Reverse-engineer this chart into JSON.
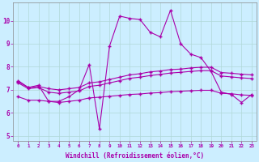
{
  "xlabel": "Windchill (Refroidissement éolien,°C)",
  "background_color": "#cceeff",
  "line_color": "#aa00aa",
  "x_values": [
    0,
    1,
    2,
    3,
    4,
    5,
    6,
    7,
    8,
    9,
    10,
    11,
    12,
    13,
    14,
    15,
    16,
    17,
    18,
    19,
    20,
    21,
    22,
    23
  ],
  "line1_y": [
    7.4,
    7.1,
    7.2,
    6.5,
    6.5,
    6.7,
    7.0,
    8.1,
    5.3,
    8.9,
    10.2,
    10.1,
    10.05,
    9.5,
    9.3,
    10.45,
    9.0,
    8.55,
    8.4,
    7.8,
    6.9,
    6.8,
    6.45,
    6.8
  ],
  "line2_y": [
    7.35,
    7.1,
    7.15,
    7.05,
    7.0,
    7.05,
    7.1,
    7.3,
    7.35,
    7.45,
    7.55,
    7.65,
    7.7,
    7.78,
    7.82,
    7.88,
    7.9,
    7.95,
    7.98,
    7.98,
    7.75,
    7.72,
    7.68,
    7.65
  ],
  "line3_y": [
    7.3,
    7.05,
    7.1,
    6.9,
    6.85,
    6.9,
    6.95,
    7.15,
    7.2,
    7.3,
    7.4,
    7.5,
    7.55,
    7.62,
    7.67,
    7.73,
    7.76,
    7.8,
    7.83,
    7.83,
    7.6,
    7.56,
    7.52,
    7.49
  ],
  "line4_y": [
    6.7,
    6.55,
    6.55,
    6.5,
    6.45,
    6.5,
    6.55,
    6.65,
    6.68,
    6.72,
    6.76,
    6.8,
    6.82,
    6.86,
    6.88,
    6.92,
    6.94,
    6.96,
    6.98,
    6.98,
    6.85,
    6.83,
    6.78,
    6.76
  ],
  "ylim": [
    4.8,
    10.8
  ],
  "xlim": [
    -0.5,
    23.5
  ],
  "yticks": [
    5,
    6,
    7,
    8,
    9,
    10
  ],
  "xticks": [
    0,
    1,
    2,
    3,
    4,
    5,
    6,
    7,
    8,
    9,
    10,
    11,
    12,
    13,
    14,
    15,
    16,
    17,
    18,
    19,
    20,
    21,
    22,
    23
  ]
}
